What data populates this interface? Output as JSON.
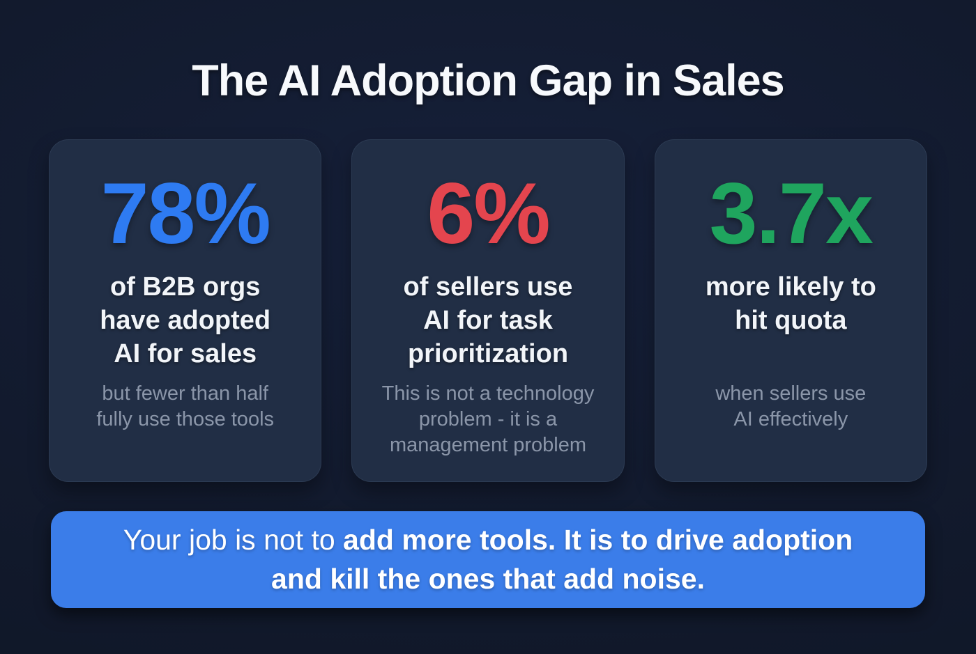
{
  "title": "The AI Adoption Gap in Sales",
  "colors": {
    "background": "#121a2d",
    "card_background": "#212e45",
    "stat_blue": "#2e7bf2",
    "stat_red": "#e4454e",
    "stat_green": "#1fa55e",
    "banner_blue": "#3b7de9",
    "heading_white": "#f2f5f9",
    "subtext_gray": "#8b96a9"
  },
  "cards": [
    {
      "stat": "78%",
      "stat_color": "#2e7bf2",
      "heading": "of B2B orgs\nhave adopted\nAI for sales",
      "subtext": "but fewer than half\nfully use those tools"
    },
    {
      "stat": "6%",
      "stat_color": "#e4454e",
      "heading": "of sellers use\nAI for task\nprioritization",
      "subtext": "This is not a technology\nproblem - it is a\nmanagement problem"
    },
    {
      "stat": "3.7x",
      "stat_color": "#1fa55e",
      "heading": "more likely to\nhit quota",
      "subtext": "when sellers use\nAI effectively"
    }
  ],
  "banner": {
    "lead": "Your job is not to ",
    "emphasis": "add more tools. It is to drive adoption and kill the ones that add noise."
  },
  "chart_data": {
    "type": "table",
    "title": "The AI Adoption Gap in Sales",
    "stats": [
      {
        "value": 78,
        "unit": "%",
        "display": "78%",
        "label": "of B2B orgs have adopted AI for sales",
        "note": "but fewer than half fully use those tools",
        "color": "#2e7bf2"
      },
      {
        "value": 6,
        "unit": "%",
        "display": "6%",
        "label": "of sellers use AI for task prioritization",
        "note": "This is not a technology problem - it is a management problem",
        "color": "#e4454e"
      },
      {
        "value": 3.7,
        "unit": "x",
        "display": "3.7x",
        "label": "more likely to hit quota",
        "note": "when sellers use AI effectively",
        "color": "#1fa55e"
      }
    ],
    "takeaway": "Your job is not to add more tools. It is to drive adoption and kill the ones that add noise."
  }
}
